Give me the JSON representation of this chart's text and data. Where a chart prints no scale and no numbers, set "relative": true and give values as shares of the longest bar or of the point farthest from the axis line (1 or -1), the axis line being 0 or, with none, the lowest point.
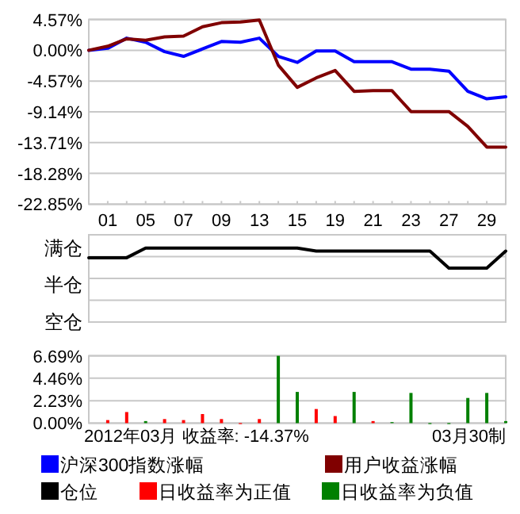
{
  "chart_data": [
    {
      "type": "line",
      "categories": [
        null,
        "01",
        null,
        "05",
        null,
        "07",
        null,
        "09",
        null,
        "13",
        null,
        "15",
        null,
        "19",
        null,
        "21",
        null,
        "23",
        null,
        "27",
        null,
        "29",
        null
      ],
      "series": [
        {
          "name": "沪深300指数涨幅",
          "color": "#0000ff",
          "values": [
            0,
            0.3,
            1.8,
            1.2,
            -0.2,
            -0.9,
            0.2,
            1.3,
            1.2,
            1.8,
            -0.9,
            -1.8,
            -0.1,
            -0.1,
            -1.7,
            -1.7,
            -1.7,
            -2.8,
            -2.8,
            -3.1,
            -6.1,
            -7.2,
            -6.9
          ]
        },
        {
          "name": "用户收益涨幅",
          "color": "#800000",
          "values": [
            0,
            0.6,
            1.7,
            1.5,
            2.0,
            2.1,
            3.5,
            4.1,
            4.2,
            4.5,
            -2.2,
            -5.5,
            -4.1,
            -3.0,
            -6.1,
            -6.0,
            -6.0,
            -9.1,
            -9.1,
            -9.1,
            -11.3,
            -14.37,
            -14.37
          ]
        }
      ],
      "ylim": [
        -22.85,
        4.57
      ],
      "yticks": [
        {
          "value": 4.57,
          "label": "4.57%"
        },
        {
          "value": 0,
          "label": "0.00%"
        },
        {
          "value": -4.57,
          "label": "-4.57%"
        },
        {
          "value": -9.14,
          "label": "-9.14%"
        },
        {
          "value": -13.71,
          "label": "-13.71%"
        },
        {
          "value": -18.28,
          "label": "-18.28%"
        },
        {
          "value": -22.85,
          "label": "-22.85%"
        }
      ],
      "grid": "y",
      "legend": "bottom",
      "marker": "none",
      "line_style": "solid"
    },
    {
      "type": "line",
      "categories": [
        null,
        "01",
        null,
        "05",
        null,
        "07",
        null,
        "09",
        null,
        "13",
        null,
        "15",
        null,
        "19",
        null,
        "21",
        null,
        "23",
        null,
        "27",
        null,
        "29",
        null
      ],
      "series": [
        {
          "name": "仓位",
          "color": "#000000",
          "values": [
            0.87,
            0.87,
            0.87,
            1,
            1,
            1,
            1,
            1,
            1,
            1,
            1,
            1,
            0.96,
            0.96,
            0.96,
            0.96,
            0.96,
            0.96,
            0.96,
            0.73,
            0.73,
            0.73,
            0.96
          ]
        }
      ],
      "relative": true,
      "annotations": [
        "满仓",
        "半仓",
        "空仓"
      ],
      "grid": "y",
      "legend": "bottom",
      "tick_labels": "y",
      "marker": "none",
      "line_style": "solid"
    },
    {
      "type": "bar",
      "stacked": true,
      "categories": [
        null,
        "01",
        null,
        "05",
        null,
        "07",
        null,
        "09",
        null,
        "13",
        null,
        "15",
        null,
        "19",
        null,
        "21",
        null,
        "23",
        null,
        "27",
        null,
        "29",
        null
      ],
      "series": [
        {
          "name": "日收益率为正值",
          "color": "#ff0000",
          "values": [
            null,
            0.3,
            1.1,
            null,
            0.4,
            0.3,
            0.9,
            0.4,
            0,
            0.4,
            null,
            null,
            1.4,
            0.7,
            null,
            0.2,
            null,
            null,
            null,
            null,
            null,
            null,
            null
          ]
        },
        {
          "name": "日收益率为负值",
          "color": "#008000",
          "values": [
            null,
            null,
            null,
            0.2,
            null,
            null,
            null,
            null,
            null,
            null,
            6.69,
            3.1,
            null,
            null,
            3.1,
            null,
            0.1,
            3.0,
            0,
            0,
            2.5,
            3.0,
            0.2
          ]
        }
      ],
      "ylim": [
        0,
        6.69
      ],
      "yticks": [
        {
          "value": 0,
          "label": "0.00%"
        },
        {
          "value": 2.23,
          "label": "2.23%"
        },
        {
          "value": 4.46,
          "label": "4.46%"
        },
        {
          "value": 6.69,
          "label": "6.69%"
        }
      ],
      "grid": "y",
      "legend": "bottom",
      "tick_labels": "y",
      "annotations": [
        "2012年03月 收益率: -14.37%",
        "03月30制"
      ]
    }
  ]
}
